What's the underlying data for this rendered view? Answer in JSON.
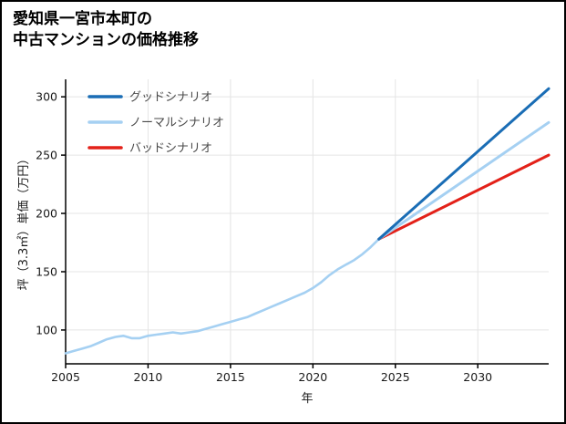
{
  "header": {
    "title_line1": "愛知県一宮市本町の",
    "title_line2": "中古マンションの価格推移"
  },
  "chart_data": {
    "type": "line",
    "title": "愛知県一宮市本町の中古マンションの価格推移",
    "xlabel": "年",
    "ylabel": "坪（3.3㎡）単価（万円）",
    "xlim": [
      2005,
      2034.3
    ],
    "ylim": [
      71,
      315
    ],
    "xticks": [
      2005,
      2010,
      2015,
      2020,
      2025,
      2030
    ],
    "yticks": [
      100,
      150,
      200,
      250,
      300
    ],
    "grid": true,
    "legend_position": "top-left",
    "legend": [
      {
        "label": "グッドシナリオ",
        "color": "#1a6db5"
      },
      {
        "label": "ノーマルシナリオ",
        "color": "#a5d0f2"
      },
      {
        "label": "バッドシナリオ",
        "color": "#e32119"
      }
    ],
    "series": [
      {
        "label": "",
        "role": "history",
        "color": "#a5d0f2",
        "width": 2.6,
        "x": [
          2005,
          2005.5,
          2006,
          2006.5,
          2007,
          2007.5,
          2008,
          2008.5,
          2009,
          2009.5,
          2010,
          2010.5,
          2011,
          2011.5,
          2012,
          2012.5,
          2013,
          2013.5,
          2014,
          2014.5,
          2015,
          2015.5,
          2016,
          2016.5,
          2017,
          2017.5,
          2018,
          2018.5,
          2019,
          2019.5,
          2020,
          2020.5,
          2021,
          2021.5,
          2022,
          2022.5,
          2023,
          2023.5,
          2024
        ],
        "y": [
          80,
          82,
          84,
          86,
          89,
          92,
          94,
          95,
          93,
          93,
          95,
          96,
          97,
          98,
          97,
          98,
          99,
          101,
          103,
          105,
          107,
          109,
          111,
          114,
          117,
          120,
          123,
          126,
          129,
          132,
          136,
          141,
          147,
          152,
          156,
          160,
          165,
          171,
          178
        ]
      },
      {
        "label": "バッドシナリオ",
        "role": "forecast",
        "color": "#e32119",
        "width": 3,
        "x": [
          2024,
          2034.3
        ],
        "y": [
          178,
          250
        ]
      },
      {
        "label": "ノーマルシナリオ",
        "role": "forecast",
        "color": "#a5d0f2",
        "width": 3,
        "x": [
          2024,
          2034.3
        ],
        "y": [
          178,
          278
        ]
      },
      {
        "label": "グッドシナリオ",
        "role": "forecast",
        "color": "#1a6db5",
        "width": 3,
        "x": [
          2024,
          2034.3
        ],
        "y": [
          178,
          307
        ]
      }
    ]
  }
}
